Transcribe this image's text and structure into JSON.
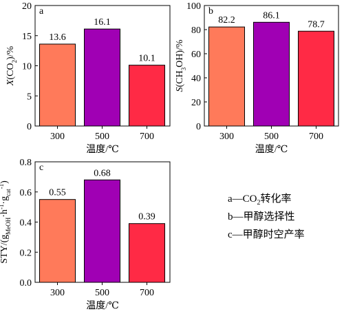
{
  "chart_data": [
    {
      "panel": "a",
      "type": "bar",
      "categories": [
        "300",
        "500",
        "700"
      ],
      "values": [
        13.6,
        16.1,
        10.1
      ],
      "data_labels": [
        "13.6",
        "16.1",
        "10.1"
      ],
      "ylabel": "X(CO2)/%",
      "xlabel": "温度/℃",
      "ylim": [
        0,
        20
      ],
      "yticks": [
        "0",
        "5",
        "10",
        "15",
        "20"
      ],
      "grid": false,
      "bar_colors": [
        "#FF7A5A",
        "#A000B4",
        "#FF2A45"
      ]
    },
    {
      "panel": "b",
      "type": "bar",
      "categories": [
        "300",
        "500",
        "700"
      ],
      "values": [
        82.2,
        86.1,
        78.7
      ],
      "data_labels": [
        "82.2",
        "86.1",
        "78.7"
      ],
      "ylabel": "S(CH3OH)/%",
      "xlabel": "温度/℃",
      "ylim": [
        0,
        100
      ],
      "yticks": [
        "0",
        "20",
        "40",
        "60",
        "80",
        "100"
      ],
      "grid": false,
      "bar_colors": [
        "#FF7A5A",
        "#A000B4",
        "#FF2A45"
      ]
    },
    {
      "panel": "c",
      "type": "bar",
      "categories": [
        "300",
        "500",
        "700"
      ],
      "values": [
        0.55,
        0.68,
        0.39
      ],
      "data_labels": [
        "0.55",
        "0.68",
        "0.39"
      ],
      "ylabel": "STY/(gMeOH·h-1·gcat-1)",
      "xlabel": "温度/℃",
      "ylim": [
        0,
        0.8
      ],
      "yticks": [
        "0.0",
        "0.2",
        "0.4",
        "0.6",
        "0.8"
      ],
      "grid": false,
      "bar_colors": [
        "#FF7A5A",
        "#A000B4",
        "#FF2A45"
      ]
    }
  ],
  "legend": {
    "a": "a—CO₂转化率",
    "b": "b—甲醇选择性",
    "c": "c—甲醇时空产率"
  }
}
